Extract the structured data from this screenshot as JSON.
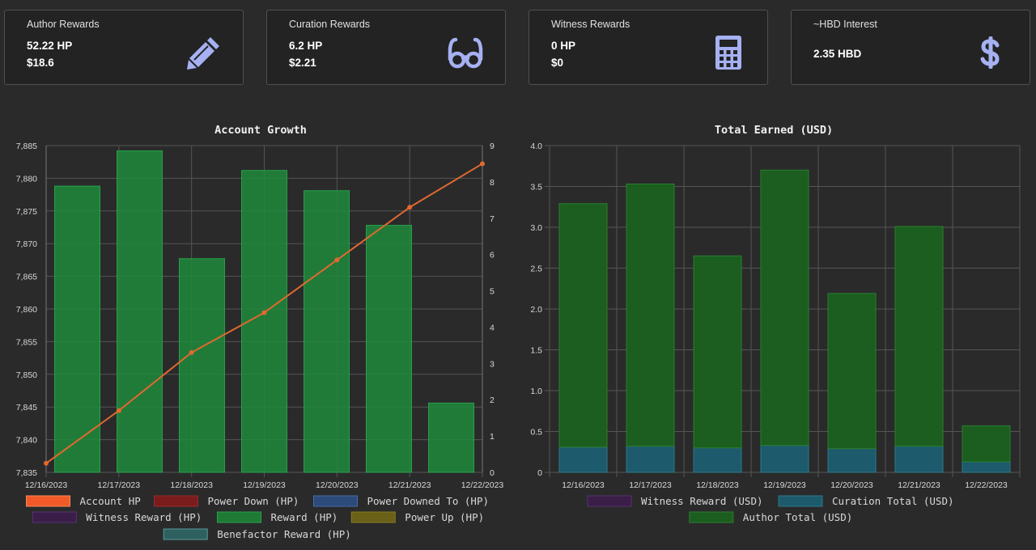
{
  "cards": [
    {
      "title": "Author Rewards",
      "line1": "52.22 HP",
      "line2": "$18.6",
      "icon": "pencil-icon"
    },
    {
      "title": "Curation Rewards",
      "line1": "6.2 HP",
      "line2": "$2.21",
      "icon": "glasses-icon"
    },
    {
      "title": "Witness Rewards",
      "line1": "0 HP",
      "line2": "$0",
      "icon": "calculator-icon"
    },
    {
      "title": "~HBD Interest",
      "line1": "2.35 HBD",
      "icon": "dollar-icon"
    }
  ],
  "colors": {
    "icon": "#a6b1f2",
    "bar_green": "#1e8a3c",
    "line_orange": "#e0692e",
    "curation": "#1d5a6b",
    "author": "#1b5e1f"
  },
  "chart_data": [
    {
      "type": "bar",
      "title": "Account Growth",
      "categories": [
        "12/16/2023",
        "12/17/2023",
        "12/18/2023",
        "12/19/2023",
        "12/20/2023",
        "12/21/2023",
        "12/22/2023"
      ],
      "ylim": [
        7835,
        7885
      ],
      "yticks": [
        "7,835",
        "7,840",
        "7,845",
        "7,850",
        "7,855",
        "7,860",
        "7,865",
        "7,870",
        "7,875",
        "7,880",
        "7,885"
      ],
      "y2lim": [
        0,
        9
      ],
      "y2ticks": [
        "0",
        "1",
        "2",
        "3",
        "4",
        "5",
        "6",
        "7",
        "8",
        "9"
      ],
      "series": [
        {
          "name": "Reward (HP)",
          "type": "bar",
          "axis": "left",
          "values": [
            7878.8,
            7884.2,
            7867.7,
            7881.2,
            7878.1,
            7872.8,
            7845.6
          ]
        },
        {
          "name": "Account HP",
          "type": "line",
          "axis": "right",
          "x": [
            0,
            1,
            2,
            3,
            4,
            5,
            6
          ],
          "values": [
            0.25,
            1.7,
            3.3,
            4.4,
            5.85,
            7.3,
            8.5
          ]
        }
      ],
      "legend": [
        {
          "label": "Account HP",
          "color": "#f05a28",
          "border": "#f58a5a"
        },
        {
          "label": "Power Down (HP)",
          "color": "#7a1c1c",
          "border": "#9a2a2a"
        },
        {
          "label": "Power Downed To (HP)",
          "color": "#2c4a7a",
          "border": "#4a6aa8"
        },
        {
          "label": "Witness Reward (HP)",
          "color": "#3a1e48",
          "border": "#5a3070"
        },
        {
          "label": "Reward (HP)",
          "color": "#1e7a34",
          "border": "#2aa04a"
        },
        {
          "label": "Power Up (HP)",
          "color": "#6a6018",
          "border": "#8a7c22"
        },
        {
          "label": "Benefactor Reward (HP)",
          "color": "#2e6060",
          "border": "#5a9a9a"
        }
      ]
    },
    {
      "type": "bar",
      "title": "Total Earned (USD)",
      "categories": [
        "12/16/2023",
        "12/17/2023",
        "12/18/2023",
        "12/19/2023",
        "12/20/2023",
        "12/21/2023",
        "12/22/2023"
      ],
      "ylim": [
        0,
        4
      ],
      "yticks": [
        "0",
        "0.5",
        "1.0",
        "1.5",
        "2.0",
        "2.5",
        "3.0",
        "3.5",
        "4.0"
      ],
      "stacked": true,
      "series": [
        {
          "name": "Witness Reward (USD)",
          "values": [
            0,
            0,
            0,
            0,
            0,
            0,
            0
          ]
        },
        {
          "name": "Curation Total (USD)",
          "values": [
            0.31,
            0.32,
            0.3,
            0.33,
            0.29,
            0.32,
            0.13
          ]
        },
        {
          "name": "Author Total (USD)",
          "values": [
            2.98,
            3.21,
            2.35,
            3.37,
            1.9,
            2.69,
            0.44
          ]
        }
      ],
      "legend": [
        {
          "label": "Witness Reward (USD)",
          "color": "#3a1e48",
          "border": "#5a3070"
        },
        {
          "label": "Curation Total (USD)",
          "color": "#1d5a6b",
          "border": "#2a7a8a"
        },
        {
          "label": "Author Total (USD)",
          "color": "#1b5e1f",
          "border": "#2a7e2e"
        }
      ]
    }
  ]
}
